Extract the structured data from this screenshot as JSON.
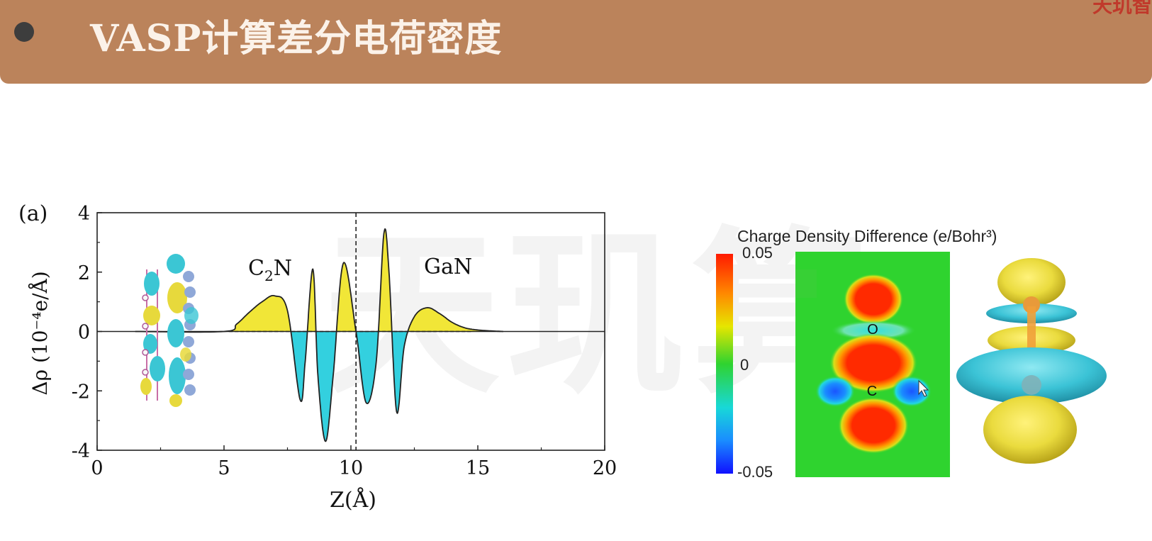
{
  "header": {
    "title": "VASP计算差分电荷密度",
    "corner_text": "天玑智"
  },
  "watermark": {
    "text": "天玑算"
  },
  "panel_a": {
    "label": "(a)"
  },
  "chart_data": [
    {
      "type": "area",
      "title": "",
      "xlabel": "Z(Å)",
      "ylabel": "Δρ (10⁻⁴e/Å)",
      "xlim": [
        0,
        20
      ],
      "ylim": [
        -4,
        4
      ],
      "xticks": [
        0,
        5,
        10,
        15,
        20
      ],
      "yticks": [
        -4,
        -2,
        0,
        2,
        4
      ],
      "grid": false,
      "annotations": [
        "C2N",
        "GaN"
      ],
      "interface_z": 10.2,
      "series": [
        {
          "x": [
            1.5,
            5.0,
            5.5,
            6.0,
            6.5,
            7.0,
            7.5,
            8.0,
            8.2,
            8.5,
            8.7,
            9.0,
            9.3,
            9.7,
            10.2,
            10.6,
            11.0,
            11.3,
            11.5,
            11.8,
            12.1,
            12.5,
            13.0,
            13.5,
            14.0,
            14.5,
            15.0,
            15.5,
            16.0
          ],
          "y": [
            0.0,
            0.0,
            0.25,
            0.65,
            1.0,
            1.2,
            0.7,
            -2.3,
            -1.0,
            2.1,
            -1.5,
            -3.7,
            -1.5,
            2.3,
            0.0,
            -2.4,
            -1.0,
            3.3,
            2.0,
            -2.7,
            -0.5,
            0.5,
            0.8,
            0.6,
            0.3,
            0.12,
            0.05,
            0.02,
            0.0
          ]
        }
      ]
    },
    {
      "type": "heatmap",
      "title": "Charge Density Difference (e/Bohr³)",
      "colorbar_ticks": [
        "0.05",
        "0",
        "-0.05"
      ],
      "colorbar_range": [
        -0.05,
        0.05
      ],
      "atom_labels": [
        "O",
        "C"
      ]
    }
  ]
}
